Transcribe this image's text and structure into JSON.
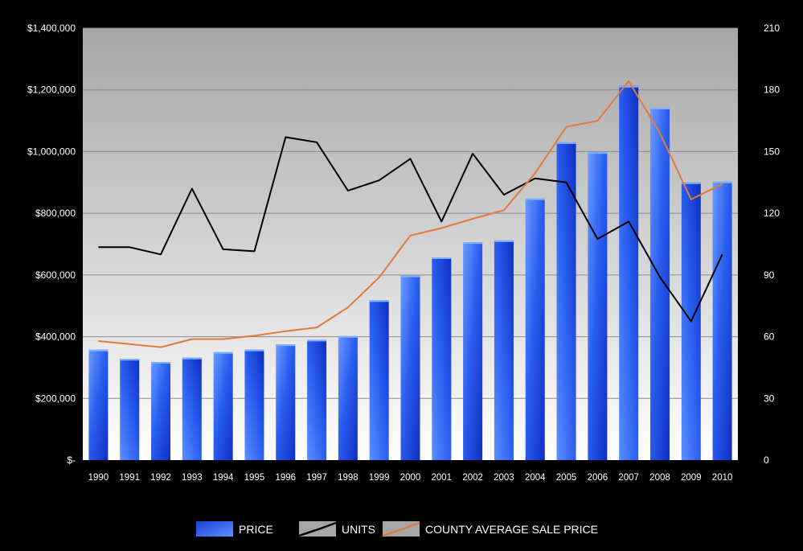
{
  "chart_data": {
    "type": "bar",
    "categories": [
      "1990",
      "1991",
      "1992",
      "1993",
      "1994",
      "1995",
      "1996",
      "1997",
      "1998",
      "1999",
      "2000",
      "2001",
      "2002",
      "2003",
      "2004",
      "2005",
      "2006",
      "2007",
      "2008",
      "2009",
      "2010"
    ],
    "series": [
      {
        "name": "PRICE",
        "type": "bar",
        "axis": "left",
        "color": "#2457e6",
        "values": [
          358000,
          328000,
          318000,
          332000,
          350000,
          358000,
          375000,
          390000,
          402000,
          518000,
          598000,
          657000,
          706000,
          712000,
          848000,
          1030000,
          998000,
          1213000,
          1142000,
          900000,
          903000
        ]
      },
      {
        "name": "UNITS",
        "type": "line",
        "axis": "right",
        "color": "#000000",
        "values": [
          103.5,
          103.5,
          100,
          132,
          102.5,
          101.5,
          157,
          154.5,
          131,
          136,
          146.5,
          116,
          149,
          129,
          137,
          135,
          107.5,
          116,
          89,
          67.5,
          100
        ]
      },
      {
        "name": "COUNTY AVERAGE SALE PRICE",
        "type": "line",
        "axis": "left",
        "color": "#e07a3a",
        "values": [
          386000,
          376000,
          366000,
          392000,
          392000,
          403000,
          418000,
          430000,
          495000,
          592000,
          728000,
          752000,
          782000,
          810000,
          930000,
          1080000,
          1100000,
          1228000,
          1060000,
          845000,
          895000
        ]
      }
    ],
    "y_left": {
      "range": [
        0,
        1400000
      ],
      "ticks": [
        0,
        200000,
        400000,
        600000,
        800000,
        1000000,
        1200000,
        1400000
      ],
      "tick_labels": [
        "$-",
        "$200,000",
        "$400,000",
        "$600,000",
        "$800,000",
        "$1,000,000",
        "$1,200,000",
        "$1,400,000"
      ]
    },
    "y_right": {
      "range": [
        0,
        210
      ],
      "ticks": [
        0,
        30,
        60,
        90,
        120,
        150,
        180,
        210
      ],
      "tick_labels": [
        "0",
        "30",
        "60",
        "90",
        "120",
        "150",
        "180",
        "210"
      ]
    },
    "grid": true,
    "legend": {
      "placement": "bottom-center",
      "items": [
        "PRICE",
        "UNITS",
        "COUNTY AVERAGE SALE PRICE"
      ]
    },
    "colors": {
      "page_background": "#000000",
      "plot_gradient_top": "#a6a6a6",
      "plot_gradient_bottom": "#ffffff",
      "gridline": "#8a8a8a",
      "bar_light": "#4f86ff",
      "bar_dark": "#0d2fc2"
    }
  }
}
